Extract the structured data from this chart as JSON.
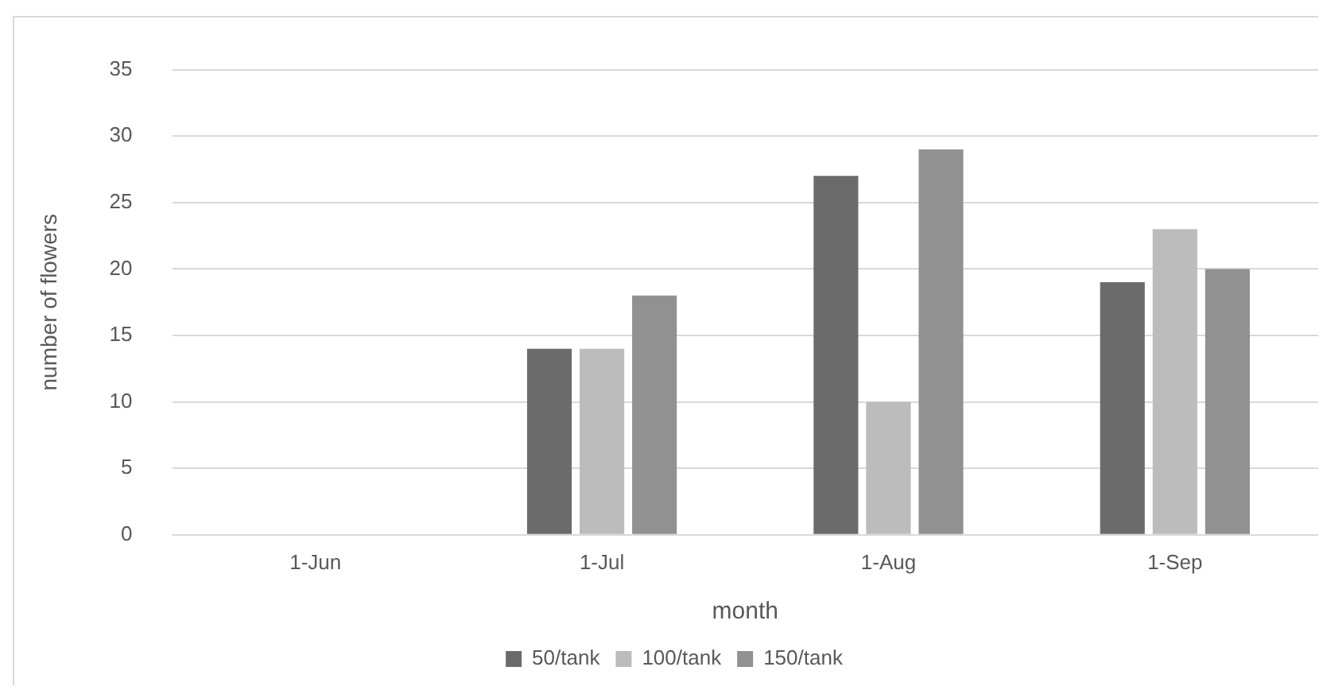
{
  "chart_data": {
    "type": "bar",
    "xlabel": "month",
    "ylabel": "number of flowers",
    "categories": [
      "1-Jun",
      "1-Jul",
      "1-Aug",
      "1-Sep"
    ],
    "series": [
      {
        "name": "50/tank",
        "color": "#6b6b6b",
        "values": [
          0,
          14,
          27,
          19
        ]
      },
      {
        "name": "100/tank",
        "color": "#bcbcbc",
        "values": [
          0,
          14,
          10,
          23
        ]
      },
      {
        "name": "150/tank",
        "color": "#919191",
        "values": [
          0,
          18,
          29,
          20
        ]
      }
    ],
    "ylim": [
      0,
      35
    ],
    "yticks": [
      0,
      5,
      10,
      15,
      20,
      25,
      30,
      35
    ],
    "grid": "y",
    "legend": "bottom"
  }
}
